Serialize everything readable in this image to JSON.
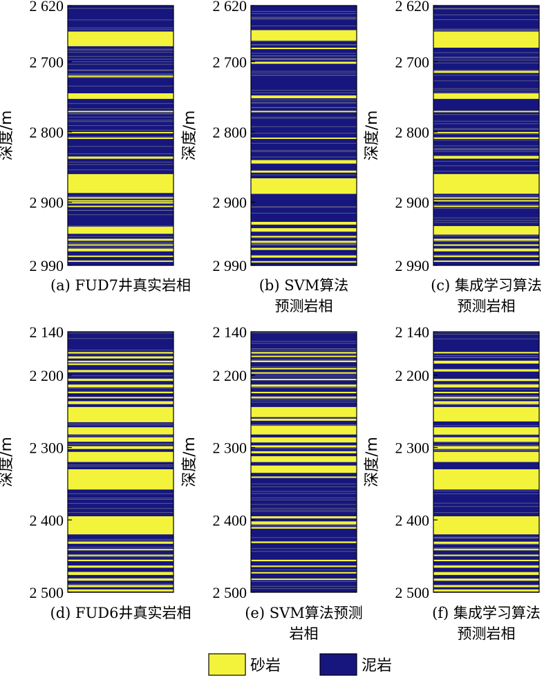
{
  "legend": [
    {
      "label": "砂岩",
      "color": "#f3f33c"
    },
    {
      "label": "泥岩",
      "color": "#16167e"
    }
  ],
  "chart_data": [
    {
      "type": "heatmap",
      "panel_label": [
        "(a) FUD7井真实岩相"
      ],
      "ylabel": "深度/m",
      "ylim": [
        2620,
        2990
      ],
      "yticks": [
        {
          "value": 2620,
          "label": "2 620"
        },
        {
          "value": 2700,
          "label": "2 700"
        },
        {
          "value": 2800,
          "label": "2 800"
        },
        {
          "value": 2900,
          "label": "2 900"
        },
        {
          "value": 2990,
          "label": "2 990"
        }
      ],
      "sandstone_intervals": [
        [
          2657,
          2678
        ],
        [
          2720,
          2722
        ],
        [
          2745,
          2753
        ],
        [
          2770,
          2772
        ],
        [
          2800,
          2802
        ],
        [
          2808,
          2810
        ],
        [
          2835,
          2838
        ],
        [
          2860,
          2887
        ],
        [
          2893,
          2895
        ],
        [
          2897,
          2899
        ],
        [
          2900,
          2902
        ],
        [
          2905,
          2907
        ],
        [
          2935,
          2945
        ],
        [
          2952,
          2955
        ],
        [
          2960,
          2962
        ],
        [
          2966,
          2970
        ],
        [
          2976,
          2978
        ],
        [
          2983,
          2985
        ]
      ]
    },
    {
      "type": "heatmap",
      "panel_label": [
        "(b) SVM算法",
        "预测岩相"
      ],
      "ylabel": "深度/m",
      "ylim": [
        2620,
        2990
      ],
      "yticks": [
        {
          "value": 2620,
          "label": "2 620"
        },
        {
          "value": 2700,
          "label": "2 700"
        },
        {
          "value": 2800,
          "label": "2 800"
        },
        {
          "value": 2900,
          "label": "2 900"
        },
        {
          "value": 2990,
          "label": "2 990"
        }
      ],
      "sandstone_intervals": [
        [
          2655,
          2670
        ],
        [
          2680,
          2682
        ],
        [
          2700,
          2703
        ],
        [
          2748,
          2752
        ],
        [
          2770,
          2772
        ],
        [
          2808,
          2810
        ],
        [
          2840,
          2845
        ],
        [
          2855,
          2858
        ],
        [
          2866,
          2888
        ],
        [
          2928,
          2932
        ],
        [
          2937,
          2942
        ],
        [
          2948,
          2950
        ],
        [
          2955,
          2958
        ],
        [
          2965,
          2968
        ],
        [
          2976,
          2979
        ],
        [
          2984,
          2986
        ]
      ]
    },
    {
      "type": "heatmap",
      "panel_label": [
        "(c) 集成学习算法",
        "预测岩相"
      ],
      "ylabel": "深度/m",
      "ylim": [
        2620,
        2990
      ],
      "yticks": [
        {
          "value": 2620,
          "label": "2 620"
        },
        {
          "value": 2700,
          "label": "2 700"
        },
        {
          "value": 2800,
          "label": "2 800"
        },
        {
          "value": 2900,
          "label": "2 900"
        },
        {
          "value": 2990,
          "label": "2 990"
        }
      ],
      "sandstone_intervals": [
        [
          2657,
          2680
        ],
        [
          2713,
          2716
        ],
        [
          2745,
          2753
        ],
        [
          2770,
          2772
        ],
        [
          2800,
          2802
        ],
        [
          2808,
          2810
        ],
        [
          2834,
          2838
        ],
        [
          2860,
          2888
        ],
        [
          2893,
          2895
        ],
        [
          2897,
          2899
        ],
        [
          2905,
          2907
        ],
        [
          2934,
          2946
        ],
        [
          2952,
          2955
        ],
        [
          2960,
          2962
        ],
        [
          2966,
          2970
        ],
        [
          2976,
          2978
        ],
        [
          2983,
          2985
        ]
      ]
    },
    {
      "type": "heatmap",
      "panel_label": [
        "(d) FUD6井真实岩相"
      ],
      "ylabel": "深度/m",
      "ylim": [
        2140,
        2500
      ],
      "yticks": [
        {
          "value": 2140,
          "label": "2 140"
        },
        {
          "value": 2200,
          "label": "2 200"
        },
        {
          "value": 2300,
          "label": "2 300"
        },
        {
          "value": 2400,
          "label": "2 400"
        },
        {
          "value": 2500,
          "label": "2 500"
        }
      ],
      "sandstone_intervals": [
        [
          2168,
          2170
        ],
        [
          2174,
          2177
        ],
        [
          2180,
          2182
        ],
        [
          2184,
          2186
        ],
        [
          2193,
          2196
        ],
        [
          2205,
          2208
        ],
        [
          2213,
          2217
        ],
        [
          2223,
          2225
        ],
        [
          2230,
          2232
        ],
        [
          2236,
          2240
        ],
        [
          2244,
          2265
        ],
        [
          2272,
          2282
        ],
        [
          2286,
          2292
        ],
        [
          2298,
          2302
        ],
        [
          2306,
          2320
        ],
        [
          2330,
          2358
        ],
        [
          2395,
          2420
        ],
        [
          2430,
          2433
        ],
        [
          2440,
          2442
        ],
        [
          2448,
          2450
        ],
        [
          2455,
          2457
        ],
        [
          2463,
          2466
        ],
        [
          2472,
          2476
        ],
        [
          2481,
          2484
        ],
        [
          2490,
          2493
        ],
        [
          2496,
          2499
        ]
      ]
    },
    {
      "type": "heatmap",
      "panel_label": [
        "(e) SVM算法预测",
        "岩相"
      ],
      "ylabel": "深度/m",
      "ylim": [
        2140,
        2500
      ],
      "yticks": [
        {
          "value": 2140,
          "label": "2 140"
        },
        {
          "value": 2200,
          "label": "2 200"
        },
        {
          "value": 2300,
          "label": "2 300"
        },
        {
          "value": 2400,
          "label": "2 400"
        },
        {
          "value": 2500,
          "label": "2 500"
        }
      ],
      "sandstone_intervals": [
        [
          2168,
          2170
        ],
        [
          2173,
          2175
        ],
        [
          2180,
          2182
        ],
        [
          2190,
          2192
        ],
        [
          2196,
          2198
        ],
        [
          2205,
          2207
        ],
        [
          2213,
          2216
        ],
        [
          2223,
          2225
        ],
        [
          2230,
          2232
        ],
        [
          2244,
          2258
        ],
        [
          2260,
          2263
        ],
        [
          2270,
          2282
        ],
        [
          2286,
          2293
        ],
        [
          2297,
          2300
        ],
        [
          2305,
          2308
        ],
        [
          2312,
          2320
        ],
        [
          2325,
          2335
        ],
        [
          2340,
          2342
        ],
        [
          2395,
          2398
        ],
        [
          2402,
          2406
        ],
        [
          2410,
          2412
        ],
        [
          2430,
          2432
        ],
        [
          2455,
          2457
        ],
        [
          2463,
          2465
        ],
        [
          2472,
          2474
        ],
        [
          2481,
          2483
        ]
      ]
    },
    {
      "type": "heatmap",
      "panel_label": [
        "(f) 集成学习算法",
        "预测岩相"
      ],
      "ylabel": "深度/m",
      "ylim": [
        2140,
        2500
      ],
      "yticks": [
        {
          "value": 2140,
          "label": "2 140"
        },
        {
          "value": 2200,
          "label": "2 200"
        },
        {
          "value": 2300,
          "label": "2 300"
        },
        {
          "value": 2400,
          "label": "2 400"
        },
        {
          "value": 2500,
          "label": "2 500"
        }
      ],
      "sandstone_intervals": [
        [
          2168,
          2170
        ],
        [
          2180,
          2184
        ],
        [
          2192,
          2195
        ],
        [
          2205,
          2208
        ],
        [
          2213,
          2217
        ],
        [
          2223,
          2225
        ],
        [
          2230,
          2232
        ],
        [
          2236,
          2240
        ],
        [
          2244,
          2264
        ],
        [
          2272,
          2282
        ],
        [
          2286,
          2292
        ],
        [
          2298,
          2302
        ],
        [
          2306,
          2320
        ],
        [
          2330,
          2358
        ],
        [
          2395,
          2420
        ],
        [
          2430,
          2433
        ],
        [
          2440,
          2442
        ],
        [
          2448,
          2450
        ],
        [
          2455,
          2457
        ],
        [
          2463,
          2466
        ],
        [
          2472,
          2476
        ],
        [
          2481,
          2484
        ],
        [
          2490,
          2493
        ],
        [
          2496,
          2499
        ]
      ]
    }
  ]
}
